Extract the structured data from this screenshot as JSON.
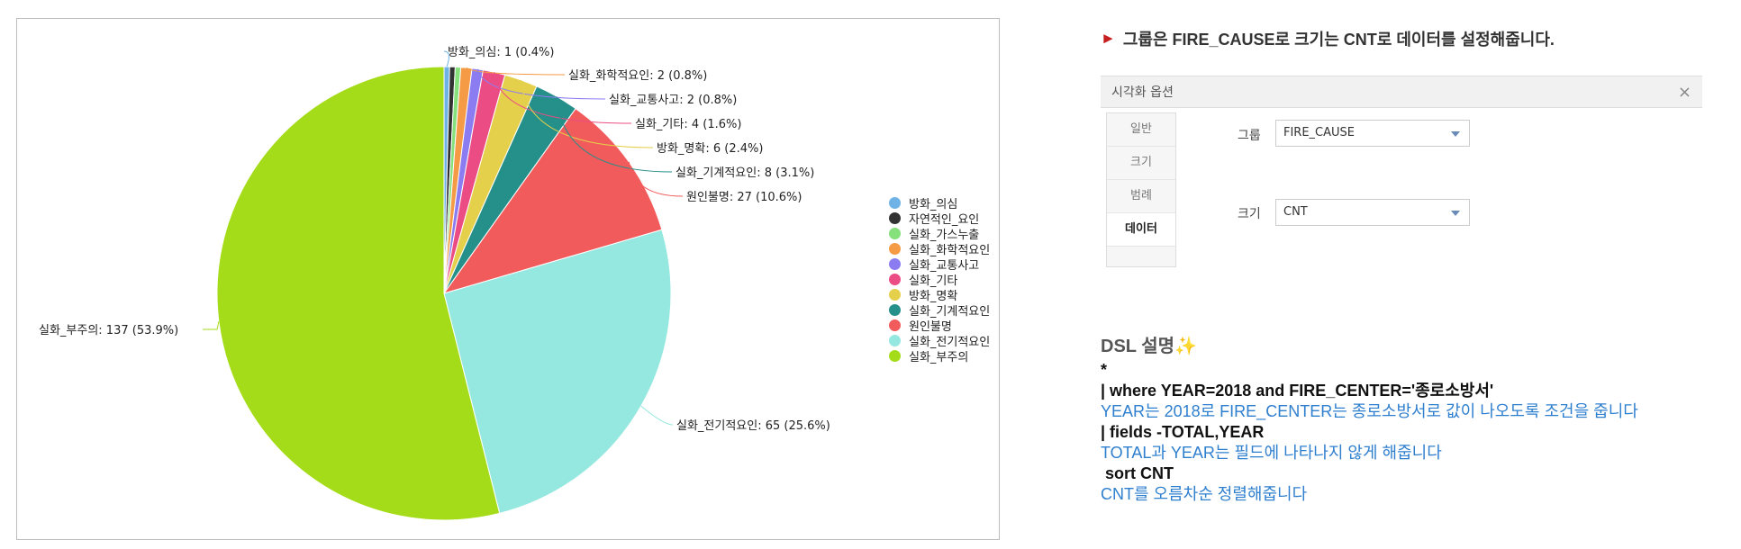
{
  "chart_data": {
    "type": "pie",
    "slices": [
      {
        "name": "방화_의심",
        "value": 1,
        "percent": "0.4%",
        "color": "#6fb3e6",
        "label": "방화_의심: 1 (0.4%)"
      },
      {
        "name": "자연적인_요인",
        "value": 1,
        "percent": "0.4%",
        "color": "#333333",
        "label": ""
      },
      {
        "name": "실화_가스누출",
        "value": 1,
        "percent": "0.4%",
        "color": "#86e07c",
        "label": ""
      },
      {
        "name": "실화_화학적요인",
        "value": 2,
        "percent": "0.8%",
        "color": "#f59a45",
        "label": "실화_화학적요인: 2 (0.8%)"
      },
      {
        "name": "실화_교통사고",
        "value": 2,
        "percent": "0.8%",
        "color": "#8b7cf2",
        "label": "실화_교통사고: 2 (0.8%)"
      },
      {
        "name": "실화_기타",
        "value": 4,
        "percent": "1.6%",
        "color": "#ec4c84",
        "label": "실화_기타: 4 (1.6%)"
      },
      {
        "name": "방화_명확",
        "value": 6,
        "percent": "2.4%",
        "color": "#e5d04b",
        "label": "방화_명확: 6 (2.4%)"
      },
      {
        "name": "실화_기계적요인",
        "value": 8,
        "percent": "3.1%",
        "color": "#258f8a",
        "label": "실화_기계적요인: 8 (3.1%)"
      },
      {
        "name": "원인불명",
        "value": 27,
        "percent": "10.6%",
        "color": "#f25b5b",
        "label": "원인불명: 27 (10.6%)"
      },
      {
        "name": "실화_전기적요인",
        "value": 65,
        "percent": "25.6%",
        "color": "#94e8e0",
        "label": "실화_전기적요인: 65 (25.6%)"
      },
      {
        "name": "실화_부주의",
        "value": 137,
        "percent": "53.9%",
        "color": "#a5dc19",
        "label": "실화_부주의: 137 (53.9%)"
      }
    ],
    "legend_position": "right"
  },
  "instruction": {
    "arrow": "►",
    "text": "그룹은 FIRE_CAUSE로 크기는 CNT로 데이터를 설정해줍니다."
  },
  "viz_options": {
    "title": "시각화 옵션",
    "close": "×",
    "tabs": [
      "일반",
      "크기",
      "범례",
      "데이터"
    ],
    "active_tab": "데이터",
    "group_label": "그룹",
    "group_value": "FIRE_CAUSE",
    "size_label": "크기",
    "size_value": "CNT"
  },
  "dsl": {
    "title": "DSL 설명✨",
    "lines": [
      {
        "kind": "code",
        "text": "*"
      },
      {
        "kind": "code",
        "text": "| where YEAR=2018 and FIRE_CENTER='종로소방서'"
      },
      {
        "kind": "desc",
        "text": "YEAR는 2018로 FIRE_CENTER는 종로소방서로 값이 나오도록 조건을 줍니다"
      },
      {
        "kind": "code",
        "text": "| fields -TOTAL,YEAR"
      },
      {
        "kind": "desc",
        "text": "TOTAL과 YEAR는 필드에 나타나지 않게 해줍니다"
      },
      {
        "kind": "code",
        "text": " sort CNT"
      },
      {
        "kind": "desc",
        "text": "CNT를 오름차순 정렬해줍니다"
      }
    ]
  }
}
